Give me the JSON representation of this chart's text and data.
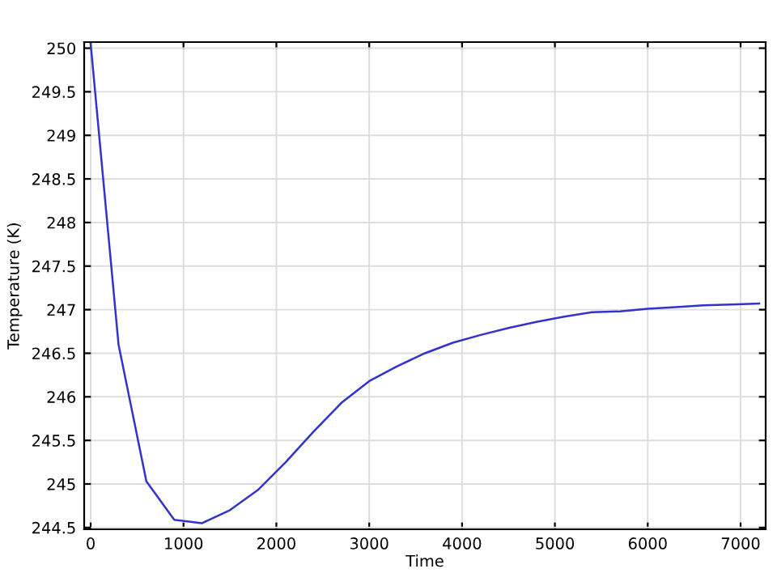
{
  "chart_data": {
    "type": "line",
    "xlabel": "Time",
    "ylabel": "Temperature (K)",
    "x": [
      0,
      300,
      600,
      900,
      1200,
      1500,
      1800,
      2100,
      2400,
      2700,
      3000,
      3300,
      3600,
      3900,
      4200,
      4500,
      4800,
      5100,
      5400,
      5700,
      6000,
      6300,
      6600,
      6900,
      7200
    ],
    "series": [
      {
        "color": "#3333cc",
        "values": [
          250.05,
          246.6,
          245.03,
          244.59,
          244.55,
          244.7,
          244.93,
          245.25,
          245.6,
          245.93,
          246.18,
          246.35,
          246.5,
          246.62,
          246.71,
          246.79,
          246.86,
          246.92,
          246.97,
          246.98,
          247.01,
          247.03,
          247.05,
          247.06,
          247.07
        ]
      }
    ],
    "xlim": [
      -70,
      7270
    ],
    "ylim": [
      244.48,
      250.07
    ],
    "xticks": [
      0,
      1000,
      2000,
      3000,
      4000,
      5000,
      6000,
      7000
    ],
    "yticks": [
      244.5,
      245,
      245.5,
      246,
      246.5,
      247,
      247.5,
      248,
      248.5,
      249,
      249.5,
      250
    ],
    "grid": true,
    "line_style": "solid",
    "marker": "none"
  }
}
